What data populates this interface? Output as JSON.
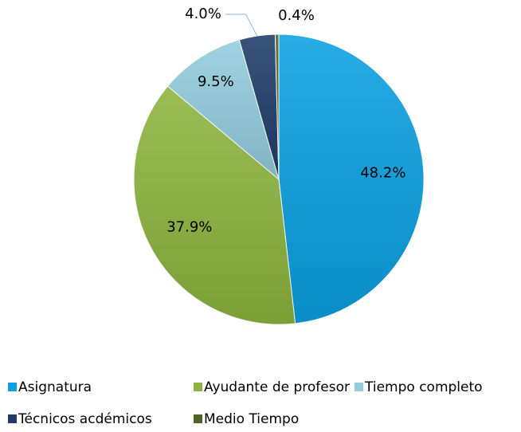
{
  "chart_data": {
    "type": "pie",
    "categories": [
      "Asignatura",
      "Ayudante de profesor",
      "Tiempo completo",
      "Técnicos acdémicos",
      "Medio Tiempo"
    ],
    "values": [
      48.2,
      37.9,
      9.5,
      4.0,
      0.4
    ],
    "value_labels": [
      "48.2%",
      "37.9%",
      "9.5%",
      "4.0%",
      "0.4%"
    ],
    "colors": [
      "#0aa0e2",
      "#8cb43e",
      "#93cddd",
      "#1f3c68",
      "#4f6228"
    ],
    "legend": "bottom"
  }
}
